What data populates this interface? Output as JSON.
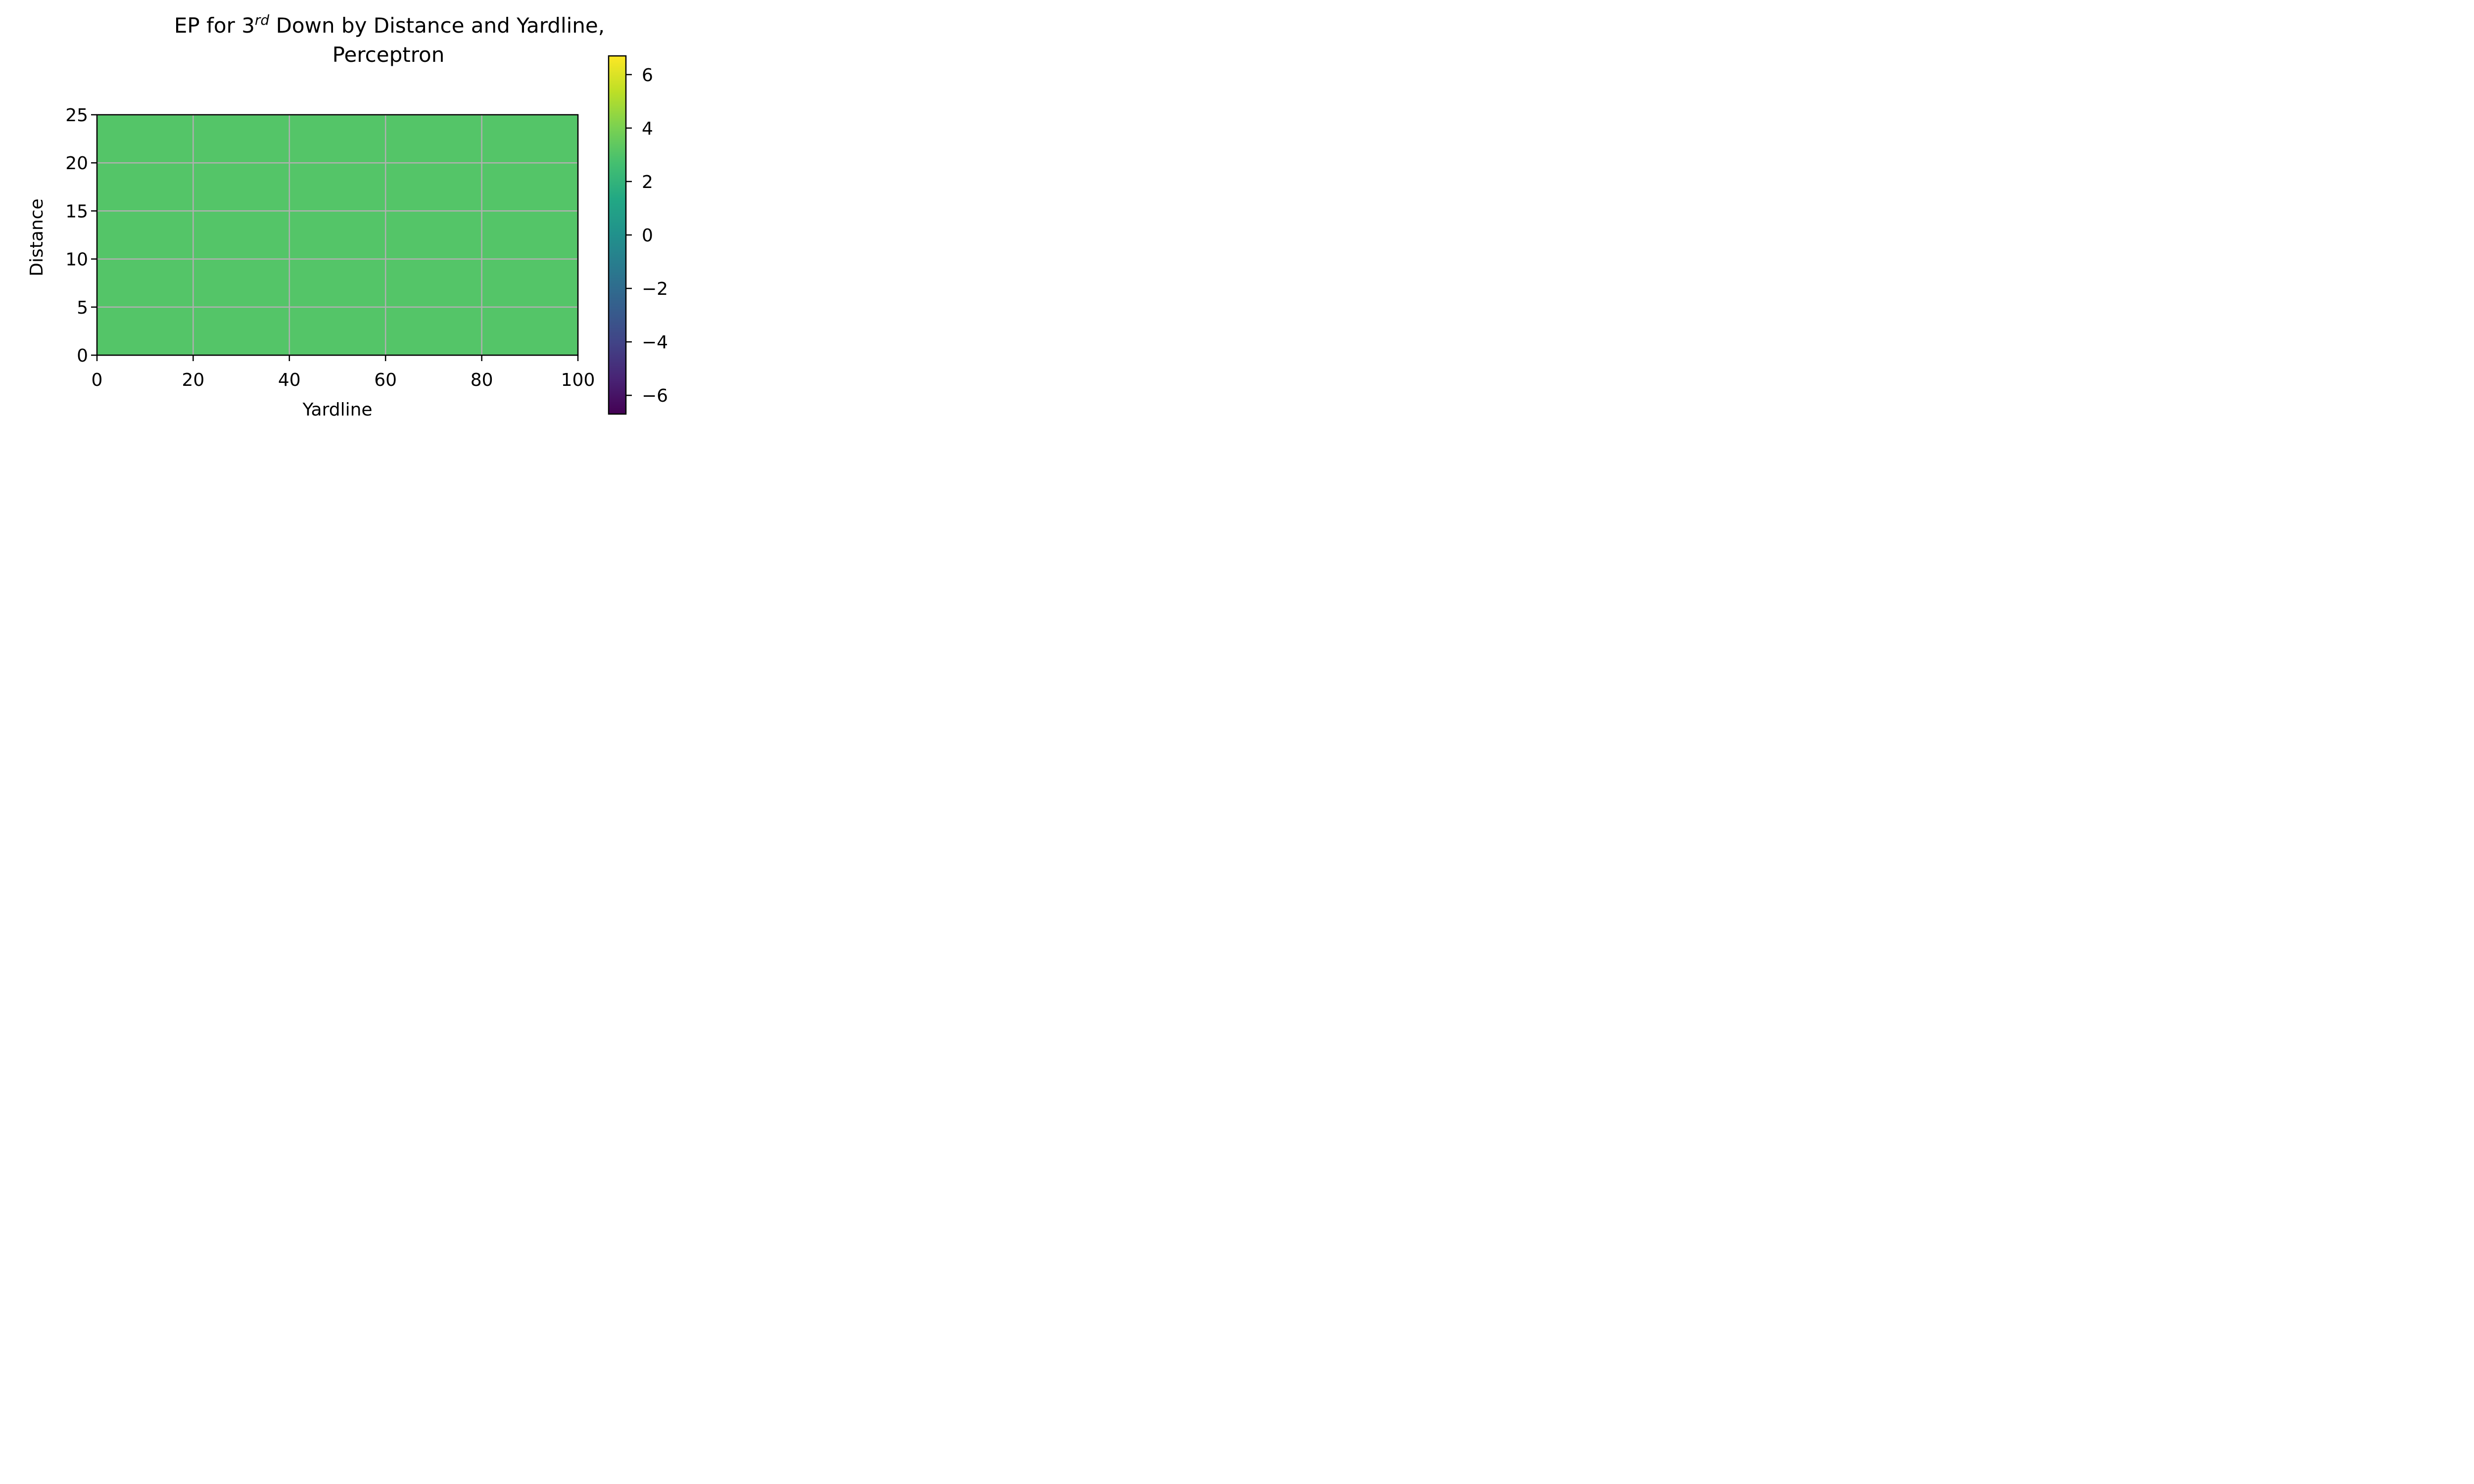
{
  "chart_data": {
    "type": "heatmap",
    "title": {
      "prefix": "EP for 3",
      "superscript": "rd",
      "suffix": " Down by Distance and Yardline,",
      "line2": "Perceptron"
    },
    "xlabel": "Yardline",
    "ylabel": "Distance",
    "xlim": [
      0,
      100
    ],
    "ylim": [
      0,
      25
    ],
    "x_ticks": [
      0,
      20,
      40,
      60,
      80,
      100
    ],
    "x_tick_labels": [
      "0",
      "20",
      "40",
      "60",
      "80",
      "100"
    ],
    "y_ticks": [
      0,
      5,
      10,
      15,
      20,
      25
    ],
    "y_tick_labels": [
      "0",
      "5",
      "10",
      "15",
      "20",
      "25"
    ],
    "grid": true,
    "colormap": "viridis",
    "colorbar": {
      "vmin": -6.7,
      "vmax": 6.7,
      "ticks": [
        -6,
        -4,
        -2,
        0,
        2,
        4,
        6
      ],
      "tick_labels": [
        "−6",
        "−4",
        "−2",
        "0",
        "2",
        "4",
        "6"
      ]
    },
    "fill_value": 3.3,
    "fill_color": "#54c568",
    "grid_color": "#b0b0b0"
  }
}
